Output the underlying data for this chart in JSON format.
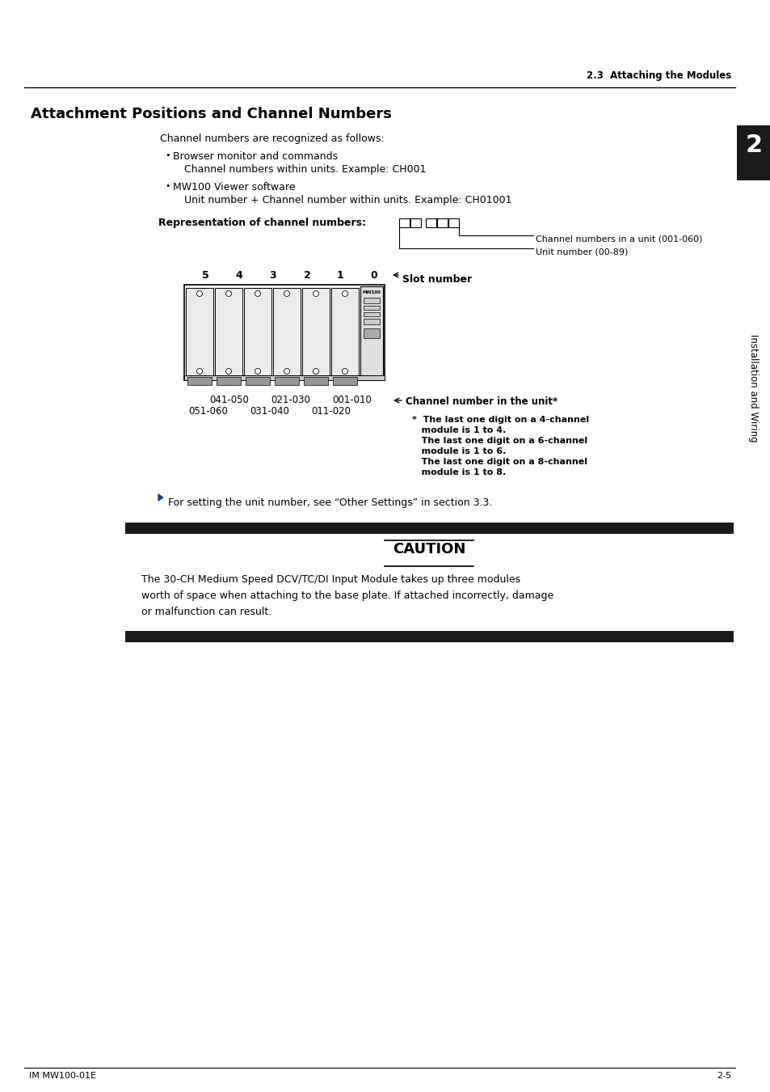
{
  "page_title": "2.3  Attaching the Modules",
  "section_title": "Attachment Positions and Channel Numbers",
  "body_text_1": "Channel numbers are recognized as follows:",
  "bullet1_title": "Browser monitor and commands",
  "bullet1_sub": "Channel numbers within units. Example: CH001",
  "bullet2_title": "MW100 Viewer software",
  "bullet2_sub": "Unit number + Channel number within units. Example: CH01001",
  "repr_label": "Representation of channel numbers:",
  "arrow1_label": "Channel numbers in a unit (001-060)",
  "arrow2_label": "Unit number (00-89)",
  "slot_label": "Slot number",
  "slot_numbers": [
    "5",
    "4",
    "3",
    "2",
    "1",
    "0"
  ],
  "ch_label": "Channel number in the unit*",
  "ch_row1": [
    "041-050",
    "021-030",
    "001-010"
  ],
  "ch_row2": [
    "051-060",
    "031-040",
    "011-020"
  ],
  "note_lines": [
    "*  The last one digit on a 4-channel",
    "   module is 1 to 4.",
    "   The last one digit on a 6-channel",
    "   module is 1 to 6.",
    "   The last one digit on a 8-channel",
    "   module is 1 to 8."
  ],
  "cross_ref": "For setting the unit number, see “Other Settings” in section 3.3.",
  "caution_title": "CAUTION",
  "caution_text_lines": [
    "The 30-CH Medium Speed DCV/TC/DI Input Module takes up three modules",
    "worth of space when attaching to the base plate. If attached incorrectly, damage",
    "or malfunction can result."
  ],
  "sidebar_text": "Installation and Wiring",
  "sidebar_num": "2",
  "footer_left": "IM MW100-01E",
  "footer_right": "2-5",
  "bg_color": "#ffffff",
  "text_color": "#000000",
  "sidebar_bg": "#1a1a1a",
  "caution_bar_color": "#1a1a1a",
  "arrow_color": "#1a3a8a",
  "header_line_color": "#000000"
}
